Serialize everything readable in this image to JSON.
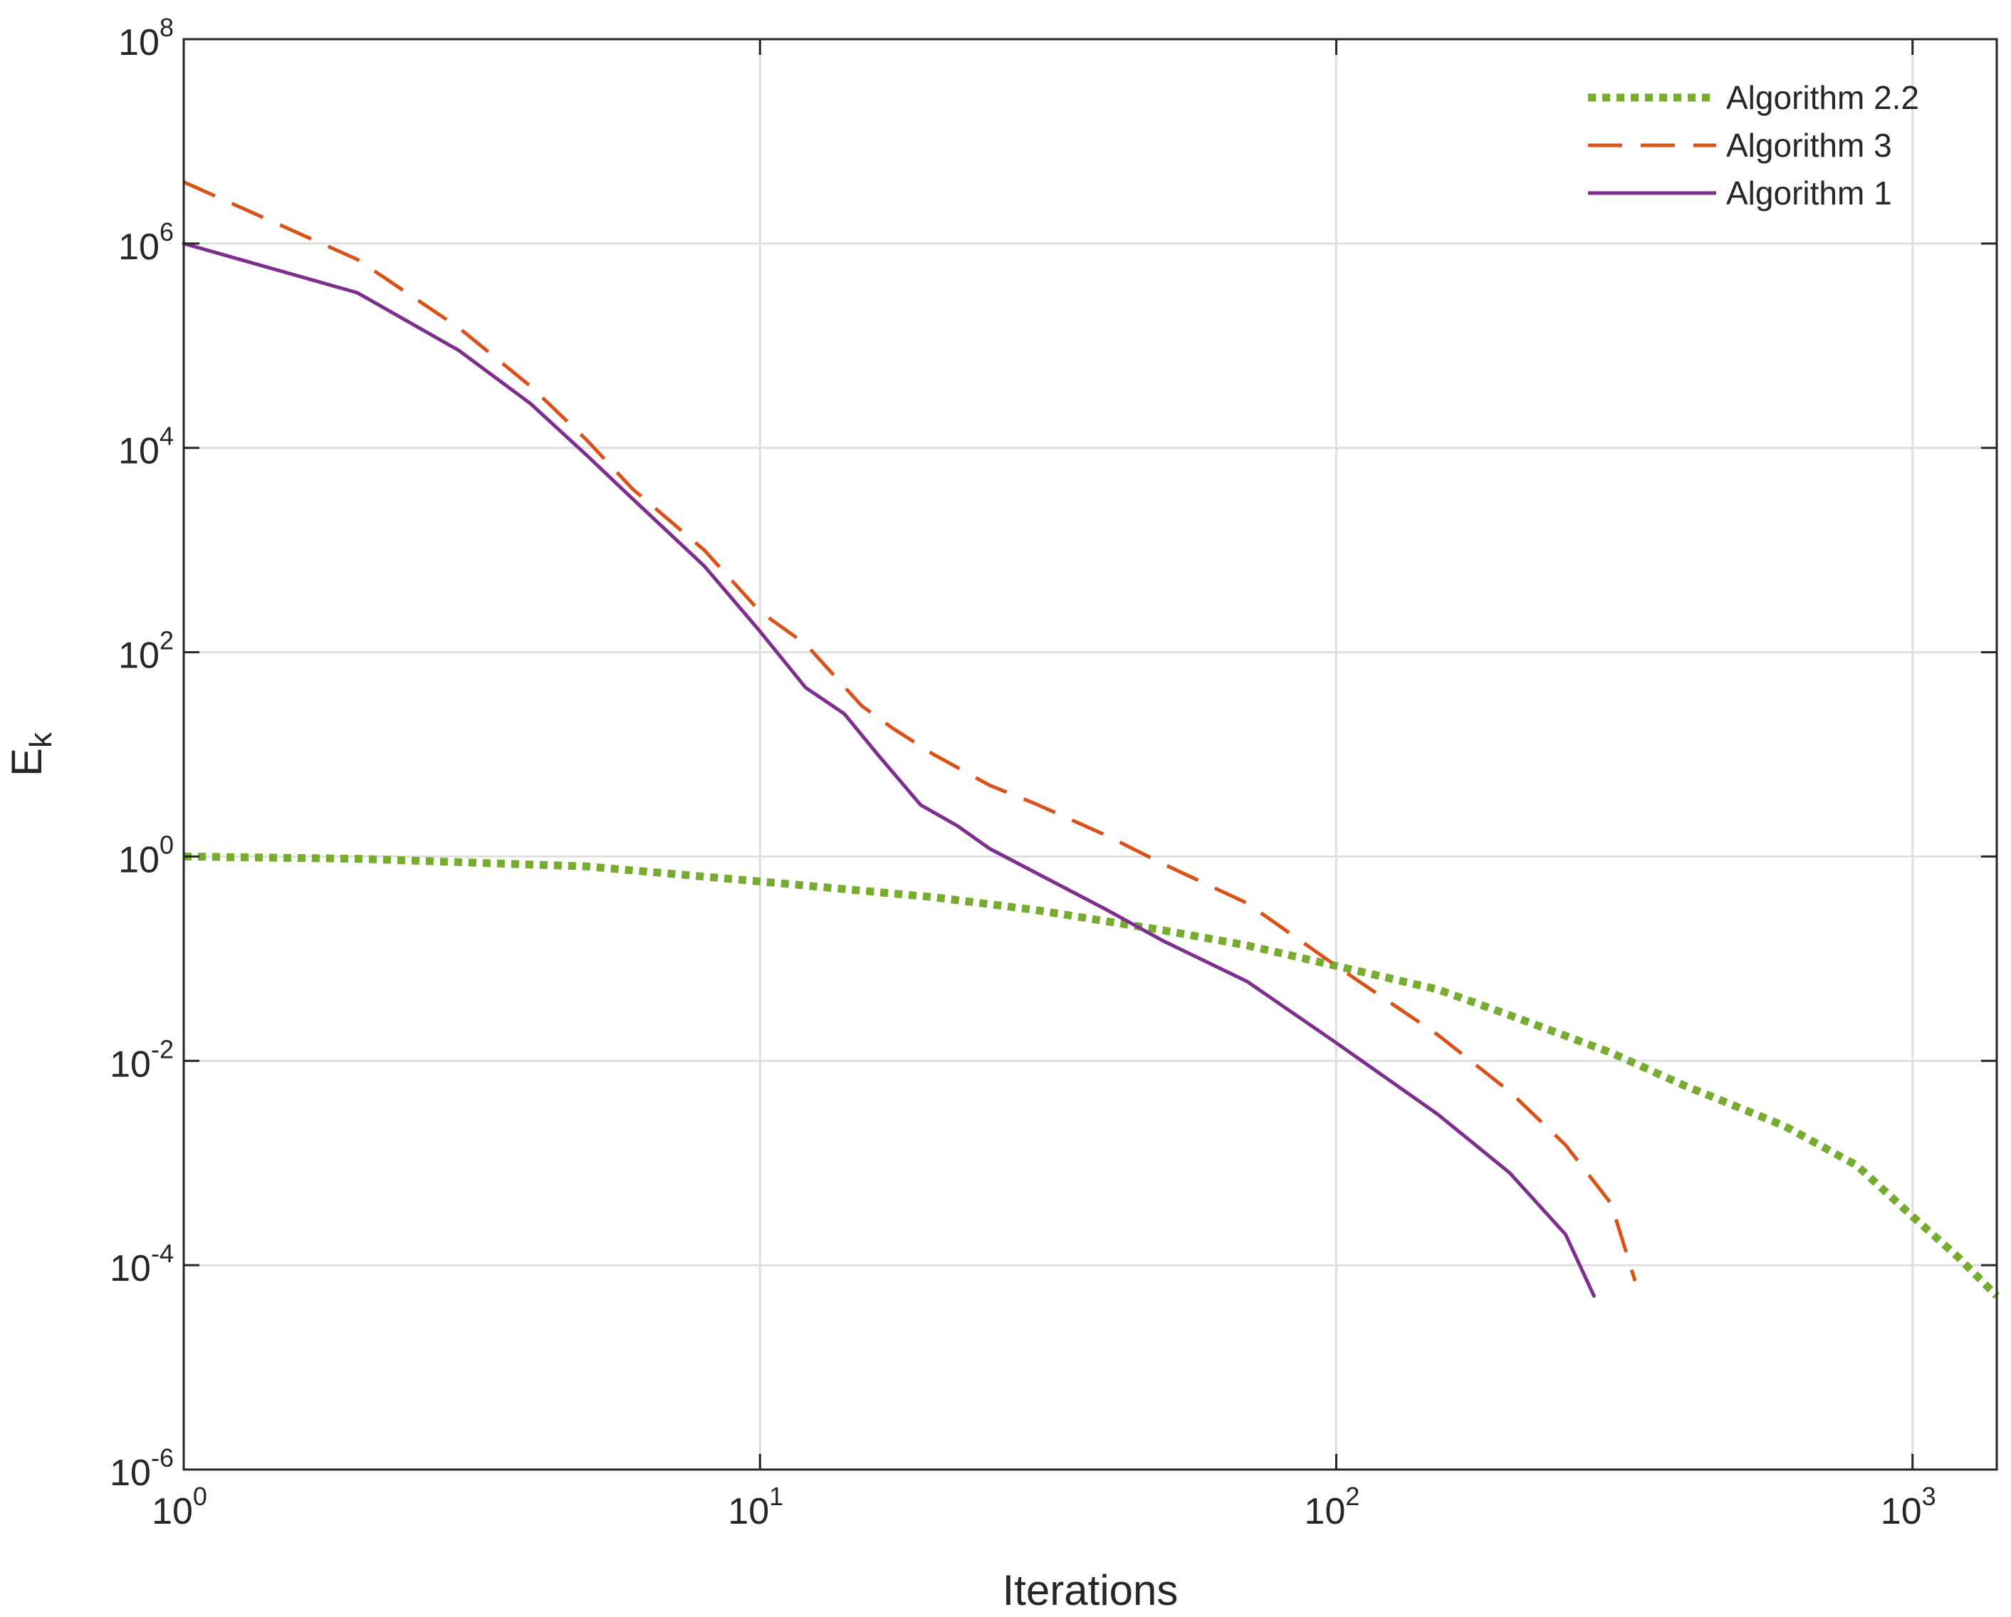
{
  "chart_data": {
    "type": "line",
    "xlabel": "Iterations",
    "ylabel": "E",
    "ylabel_sub": "k",
    "xscale": "log",
    "yscale": "log",
    "xlim": [
      1,
      1400
    ],
    "ylim": [
      1e-06,
      100000000.0
    ],
    "grid": true,
    "legend_position": "top-right",
    "x_ticks": [
      {
        "value": 1,
        "base": "10",
        "exp": "0"
      },
      {
        "value": 10,
        "base": "10",
        "exp": "1"
      },
      {
        "value": 100,
        "base": "10",
        "exp": "2"
      },
      {
        "value": 1000,
        "base": "10",
        "exp": "3"
      }
    ],
    "y_ticks": [
      {
        "value": 100000000.0,
        "base": "10",
        "exp": "8"
      },
      {
        "value": 1000000.0,
        "base": "10",
        "exp": "6"
      },
      {
        "value": 10000.0,
        "base": "10",
        "exp": "4"
      },
      {
        "value": 100.0,
        "base": "10",
        "exp": "2"
      },
      {
        "value": 1,
        "base": "10",
        "exp": "0"
      },
      {
        "value": 0.01,
        "base": "10",
        "exp": "-2"
      },
      {
        "value": 0.0001,
        "base": "10",
        "exp": "-4"
      },
      {
        "value": 1e-06,
        "base": "10",
        "exp": "-6"
      }
    ],
    "series": [
      {
        "name": "Algorithm 2.2",
        "color": "#77ac30",
        "style": "dotted",
        "points": [
          [
            1,
            1.0
          ],
          [
            2,
            0.95
          ],
          [
            5,
            0.8
          ],
          [
            10,
            0.57
          ],
          [
            20,
            0.4
          ],
          [
            30,
            0.3
          ],
          [
            50,
            0.19
          ],
          [
            70,
            0.135
          ],
          [
            100,
            0.085
          ],
          [
            150,
            0.05
          ],
          [
            200,
            0.028
          ],
          [
            300,
            0.012
          ],
          [
            400,
            0.0058
          ],
          [
            600,
            0.0023
          ],
          [
            800,
            0.00095
          ],
          [
            1000,
            0.0003
          ],
          [
            1200,
            0.00012
          ],
          [
            1400,
            5e-05
          ]
        ]
      },
      {
        "name": "Algorithm 3",
        "color": "#d95319",
        "style": "dashed",
        "points": [
          [
            1,
            4000000
          ],
          [
            2,
            700000
          ],
          [
            3,
            150000
          ],
          [
            4,
            40000
          ],
          [
            5,
            12000
          ],
          [
            6,
            4000
          ],
          [
            8,
            1000
          ],
          [
            10,
            250
          ],
          [
            12,
            120
          ],
          [
            15,
            30
          ],
          [
            17,
            18
          ],
          [
            20,
            10
          ],
          [
            25,
            5
          ],
          [
            30,
            3.3
          ],
          [
            40,
            1.6
          ],
          [
            50,
            0.85
          ],
          [
            70,
            0.35
          ],
          [
            100,
            0.085
          ],
          [
            150,
            0.018
          ],
          [
            200,
            0.005
          ],
          [
            250,
            0.0015
          ],
          [
            300,
            0.0004
          ],
          [
            330,
            7e-05
          ]
        ]
      },
      {
        "name": "Algorithm 1",
        "color": "#7e2f8e",
        "style": "solid",
        "points": [
          [
            1,
            1000000
          ],
          [
            2,
            330000
          ],
          [
            3,
            90000
          ],
          [
            4,
            27000
          ],
          [
            5,
            8500
          ],
          [
            6,
            3200
          ],
          [
            8,
            700
          ],
          [
            10,
            160
          ],
          [
            12,
            45
          ],
          [
            14,
            25
          ],
          [
            16,
            10
          ],
          [
            19,
            3.2
          ],
          [
            22,
            2
          ],
          [
            25,
            1.2
          ],
          [
            30,
            0.7
          ],
          [
            40,
            0.3
          ],
          [
            50,
            0.15
          ],
          [
            70,
            0.06
          ],
          [
            100,
            0.015
          ],
          [
            150,
            0.003
          ],
          [
            200,
            0.0008
          ],
          [
            250,
            0.0002
          ],
          [
            280,
            5e-05
          ]
        ]
      }
    ]
  }
}
